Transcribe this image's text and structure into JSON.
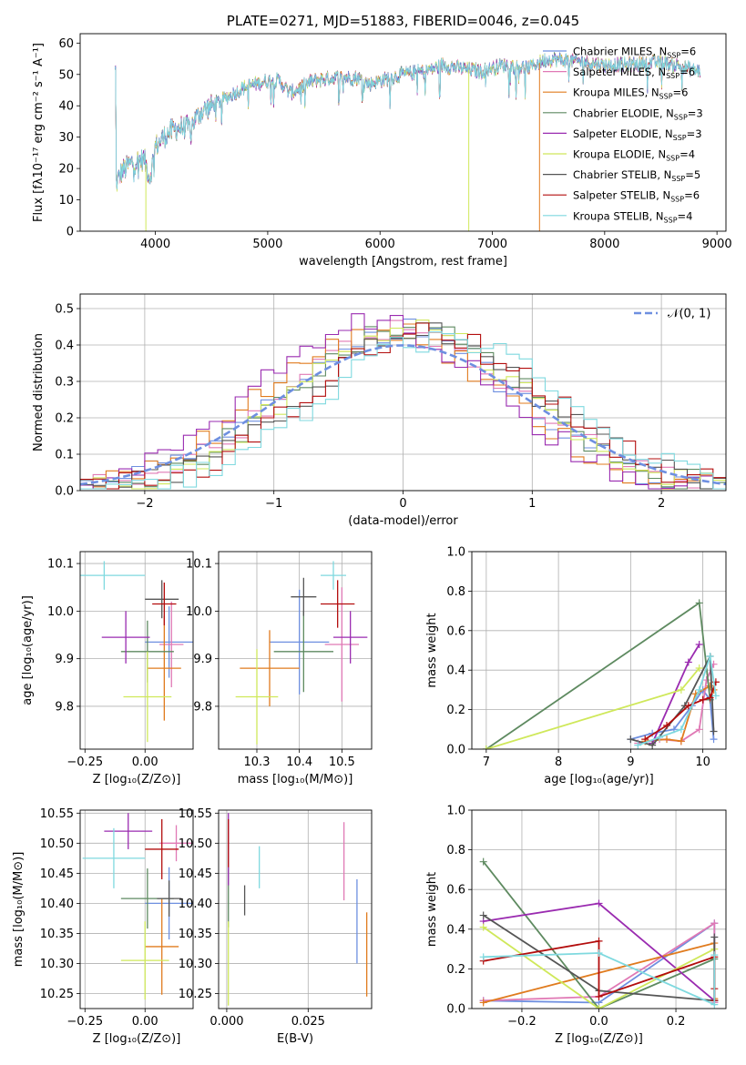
{
  "colors": {
    "cm": "#6e8fe0",
    "sm": "#e079b5",
    "km": "#e07b1e",
    "ce": "#5e8a60",
    "se": "#9a2bb0",
    "ke": "#cfe85a",
    "cs": "#555555",
    "ss": "#b30d0d",
    "ks": "#7fd9df",
    "grid": "#b0b0b0",
    "normal": "#6e8fe0"
  },
  "chart_data": [
    {
      "id": "spectrum",
      "type": "line",
      "title": "PLATE=0271, MJD=51883, FIBERID=0046, z=0.045",
      "xlabel": "wavelength [Angstrom, rest frame]",
      "ylabel": "Flux [fλ10⁻¹⁷ erg cm⁻² s⁻¹ A⁻¹]",
      "xlim": [
        3330,
        9080
      ],
      "ylim": [
        0,
        63
      ],
      "xticks": [
        4000,
        5000,
        6000,
        7000,
        8000,
        9000
      ],
      "yticks": [
        0,
        10,
        20,
        30,
        40,
        50,
        60
      ],
      "grid": false,
      "legend_position": "upper-right",
      "legend": [
        {
          "key": "cm",
          "label": "Chabrier MILES, N",
          "sub": "SSP",
          "tail": "=6"
        },
        {
          "key": "sm",
          "label": "Salpeter MILES, N",
          "sub": "SSP",
          "tail": "=6"
        },
        {
          "key": "km",
          "label": "Kroupa MILES, N",
          "sub": "SSP",
          "tail": "=6"
        },
        {
          "key": "ce",
          "label": "Chabrier ELODIE, N",
          "sub": "SSP",
          "tail": "=3"
        },
        {
          "key": "se",
          "label": "Salpeter ELODIE, N",
          "sub": "SSP",
          "tail": "=3"
        },
        {
          "key": "ke",
          "label": "Kroupa ELODIE, N",
          "sub": "SSP",
          "tail": "=4"
        },
        {
          "key": "cs",
          "label": "Chabrier STELIB, N",
          "sub": "SSP",
          "tail": "=5"
        },
        {
          "key": "ss",
          "label": "Salpeter STELIB, N",
          "sub": "SSP",
          "tail": "=6"
        },
        {
          "key": "ks",
          "label": "Kroupa STELIB, N",
          "sub": "SSP",
          "tail": "=4"
        }
      ],
      "continuum": [
        [
          3650,
          15
        ],
        [
          3700,
          19
        ],
        [
          3800,
          22
        ],
        [
          3900,
          23
        ],
        [
          3950,
          17
        ],
        [
          4000,
          27
        ],
        [
          4100,
          31
        ],
        [
          4200,
          33
        ],
        [
          4300,
          33
        ],
        [
          4400,
          38
        ],
        [
          4600,
          42
        ],
        [
          4800,
          46
        ],
        [
          5000,
          48
        ],
        [
          5100,
          48
        ],
        [
          5200,
          44
        ],
        [
          5400,
          48
        ],
        [
          5600,
          49
        ],
        [
          5800,
          49
        ],
        [
          5900,
          47
        ],
        [
          6000,
          48
        ],
        [
          6200,
          50
        ],
        [
          6400,
          51
        ],
        [
          6560,
          53
        ],
        [
          6700,
          52
        ],
        [
          6900,
          51
        ],
        [
          7100,
          53
        ],
        [
          7300,
          52
        ],
        [
          7500,
          55
        ],
        [
          7800,
          54
        ],
        [
          8000,
          53
        ],
        [
          8200,
          53
        ],
        [
          8500,
          54
        ],
        [
          8850,
          51
        ]
      ],
      "spikes": [
        {
          "x": 3915,
          "key": "ke"
        },
        {
          "x": 6790,
          "key": "ke"
        },
        {
          "x": 7420,
          "key": "km"
        }
      ]
    },
    {
      "id": "residuals",
      "type": "step-histogram",
      "xlabel": "(data-model)/error",
      "ylabel": "Normed distribution",
      "xlim": [
        -2.5,
        2.5
      ],
      "ylim": [
        0,
        0.54
      ],
      "xticks": [
        -2,
        -1,
        0,
        1,
        2
      ],
      "yticks": [
        0.0,
        0.1,
        0.2,
        0.3,
        0.4,
        0.5
      ],
      "grid": true,
      "legend_position": "upper-right",
      "legend_label": "𝒩(0, 1)",
      "series_keys": [
        "cm",
        "sm",
        "km",
        "ce",
        "se",
        "ke",
        "cs",
        "ss",
        "ks"
      ]
    },
    {
      "id": "age_Z",
      "type": "errorbar",
      "xlabel": "Z [log₁₀(Z/Z⊙)]",
      "ylabel": "age  [log₁₀(age/yr)]",
      "xlim": [
        -0.27,
        0.2
      ],
      "ylim": [
        9.71,
        10.125
      ],
      "xticks": [
        -0.25,
        0.0
      ],
      "xticklabels": [
        "−0.25",
        "0.00"
      ],
      "yticks": [
        9.8,
        9.9,
        10.0,
        10.1
      ],
      "grid": true,
      "points": [
        {
          "key": "cm",
          "x": 0.1,
          "xe": 0.1,
          "y": 9.935,
          "ye": 0.075
        },
        {
          "key": "sm",
          "x": 0.11,
          "xe": 0.05,
          "y": 9.93,
          "ye": 0.09
        },
        {
          "key": "km",
          "x": 0.08,
          "xe": 0.07,
          "y": 9.88,
          "ye": 0.11
        },
        {
          "key": "ce",
          "x": 0.01,
          "xe": 0.11,
          "y": 9.915,
          "ye": 0.065
        },
        {
          "key": "se",
          "x": -0.08,
          "xe": 0.1,
          "y": 9.945,
          "ye": 0.055
        },
        {
          "key": "ke",
          "x": 0.01,
          "xe": 0.1,
          "y": 9.82,
          "ye": 0.095
        },
        {
          "key": "cs",
          "x": 0.07,
          "xe": 0.07,
          "y": 10.025,
          "ye": 0.04
        },
        {
          "key": "ss",
          "x": 0.08,
          "xe": 0.05,
          "y": 10.015,
          "ye": 0.045
        },
        {
          "key": "ks",
          "x": -0.17,
          "xe": 0.17,
          "y": 10.075,
          "ye": 0.03
        }
      ]
    },
    {
      "id": "age_mass",
      "type": "errorbar",
      "xlabel": "mass [log₁₀(M/M⊙)]",
      "xlim": [
        10.21,
        10.57
      ],
      "ylim": [
        9.71,
        10.125
      ],
      "xticks": [
        10.3,
        10.4,
        10.5
      ],
      "xticklabels": [
        "10.3",
        "10.4",
        "10.5"
      ],
      "yticks": [
        9.8,
        9.9,
        10.0,
        10.1
      ],
      "grid": true,
      "points": [
        {
          "key": "cm",
          "x": 10.4,
          "xe": 0.07,
          "y": 9.935,
          "ye": 0.11
        },
        {
          "key": "sm",
          "x": 10.5,
          "xe": 0.04,
          "y": 9.93,
          "ye": 0.12
        },
        {
          "key": "km",
          "x": 10.33,
          "xe": 0.07,
          "y": 9.88,
          "ye": 0.08
        },
        {
          "key": "ce",
          "x": 10.41,
          "xe": 0.07,
          "y": 9.915,
          "ye": 0.085
        },
        {
          "key": "se",
          "x": 10.52,
          "xe": 0.04,
          "y": 9.945,
          "ye": 0.055
        },
        {
          "key": "ke",
          "x": 10.3,
          "xe": 0.05,
          "y": 9.82,
          "ye": 0.1
        },
        {
          "key": "cs",
          "x": 10.41,
          "xe": 0.03,
          "y": 10.03,
          "ye": 0.04
        },
        {
          "key": "ss",
          "x": 10.49,
          "xe": 0.04,
          "y": 10.015,
          "ye": 0.05
        },
        {
          "key": "ks",
          "x": 10.48,
          "xe": 0.03,
          "y": 10.075,
          "ye": 0.03
        }
      ]
    },
    {
      "id": "weight_age",
      "type": "line",
      "xlabel": "age  [log₁₀(age/yr)]",
      "ylabel": "mass weight",
      "xlim": [
        6.8,
        10.32
      ],
      "ylim": [
        0,
        1
      ],
      "xticks": [
        7,
        8,
        9,
        10
      ],
      "yticks": [
        0.0,
        0.2,
        0.4,
        0.6,
        0.8,
        1.0
      ],
      "grid": true,
      "series": [
        {
          "key": "cm",
          "points": [
            [
              9.0,
              0.05
            ],
            [
              9.3,
              0.08
            ],
            [
              9.6,
              0.1
            ],
            [
              9.85,
              0.22
            ],
            [
              10.0,
              0.3
            ],
            [
              10.1,
              0.25
            ],
            [
              10.15,
              0.05
            ]
          ]
        },
        {
          "key": "sm",
          "points": [
            [
              9.1,
              0.03
            ],
            [
              9.4,
              0.05
            ],
            [
              9.7,
              0.04
            ],
            [
              9.95,
              0.1
            ],
            [
              10.05,
              0.35
            ],
            [
              10.15,
              0.43
            ]
          ]
        },
        {
          "key": "km",
          "points": [
            [
              9.2,
              0.04
            ],
            [
              9.5,
              0.05
            ],
            [
              9.7,
              0.04
            ],
            [
              9.9,
              0.28
            ],
            [
              10.1,
              0.32
            ],
            [
              10.15,
              0.3
            ]
          ]
        },
        {
          "key": "ce",
          "points": [
            [
              7.0,
              0.0
            ],
            [
              9.95,
              0.74
            ],
            [
              10.1,
              0.25
            ]
          ]
        },
        {
          "key": "se",
          "points": [
            [
              9.3,
              0.03
            ],
            [
              9.8,
              0.44
            ],
            [
              9.95,
              0.53
            ]
          ]
        },
        {
          "key": "ke",
          "points": [
            [
              7.0,
              0.0
            ],
            [
              9.7,
              0.3
            ],
            [
              9.95,
              0.41
            ]
          ]
        },
        {
          "key": "cs",
          "points": [
            [
              9.0,
              0.05
            ],
            [
              9.3,
              0.02
            ],
            [
              9.75,
              0.22
            ],
            [
              10.1,
              0.47
            ],
            [
              10.15,
              0.09
            ]
          ]
        },
        {
          "key": "ss",
          "points": [
            [
              9.2,
              0.05
            ],
            [
              9.5,
              0.12
            ],
            [
              9.8,
              0.22
            ],
            [
              10.0,
              0.25
            ],
            [
              10.1,
              0.26
            ],
            [
              10.18,
              0.34
            ]
          ]
        },
        {
          "key": "ks",
          "points": [
            [
              9.1,
              0.02
            ],
            [
              9.4,
              0.06
            ],
            [
              9.7,
              0.1
            ],
            [
              9.95,
              0.3
            ],
            [
              10.1,
              0.47
            ],
            [
              10.18,
              0.27
            ]
          ]
        }
      ]
    },
    {
      "id": "mass_Z",
      "type": "errorbar",
      "xlabel": "Z [log₁₀(Z/Z⊙)]",
      "ylabel": "mass [log₁₀(M/M⊙)]",
      "xlim": [
        -0.27,
        0.2
      ],
      "ylim": [
        10.225,
        10.555
      ],
      "xticks": [
        -0.25,
        0.0
      ],
      "xticklabels": [
        "−0.25",
        "0.00"
      ],
      "yticks": [
        10.25,
        10.3,
        10.35,
        10.4,
        10.45,
        10.5,
        10.55
      ],
      "grid": true,
      "points": [
        {
          "key": "cm",
          "x": 0.1,
          "xe": 0.1,
          "y": 10.4,
          "ye": 0.06
        },
        {
          "key": "sm",
          "x": 0.13,
          "xe": 0.07,
          "y": 10.5,
          "ye": 0.03
        },
        {
          "key": "km",
          "x": 0.07,
          "xe": 0.07,
          "y": 10.328,
          "ye": 0.08
        },
        {
          "key": "ce",
          "x": 0.01,
          "xe": 0.11,
          "y": 10.408,
          "ye": 0.05
        },
        {
          "key": "se",
          "x": -0.07,
          "xe": 0.1,
          "y": 10.52,
          "ye": 0.03
        },
        {
          "key": "ke",
          "x": 0.0,
          "xe": 0.1,
          "y": 10.305,
          "ye": 0.065
        },
        {
          "key": "cs",
          "x": 0.1,
          "xe": 0.05,
          "y": 10.408,
          "ye": 0.03
        },
        {
          "key": "ss",
          "x": 0.07,
          "xe": 0.07,
          "y": 10.49,
          "ye": 0.05
        },
        {
          "key": "ks",
          "x": -0.13,
          "xe": 0.13,
          "y": 10.475,
          "ye": 0.05
        }
      ]
    },
    {
      "id": "mass_ebv",
      "type": "errorbar",
      "xlabel": "E(B-V)",
      "xlim": [
        -0.0025,
        0.0445
      ],
      "ylim": [
        10.225,
        10.555
      ],
      "xticks": [
        0.0,
        0.025
      ],
      "xticklabels": [
        "0.000",
        "0.025"
      ],
      "yticks": [
        10.25,
        10.3,
        10.35,
        10.4,
        10.45,
        10.5,
        10.55
      ],
      "grid": true,
      "points": [
        {
          "key": "cm",
          "x": 0.04,
          "xe": 0,
          "y": 10.37,
          "ye": 0.07
        },
        {
          "key": "sm",
          "x": 0.036,
          "xe": 0,
          "y": 10.47,
          "ye": 0.065
        },
        {
          "key": "km",
          "x": 0.043,
          "xe": 0,
          "y": 10.315,
          "ye": 0.07
        },
        {
          "key": "ce",
          "x": 0.0005,
          "xe": 0,
          "y": 10.41,
          "ye": 0.05
        },
        {
          "key": "se",
          "x": 0.0005,
          "xe": 0,
          "y": 10.49,
          "ye": 0.06
        },
        {
          "key": "ke",
          "x": 0.0005,
          "xe": 0,
          "y": 10.3,
          "ye": 0.07
        },
        {
          "key": "cs",
          "x": 0.0055,
          "xe": 0,
          "y": 10.405,
          "ye": 0.025
        },
        {
          "key": "ss",
          "x": 0.0005,
          "xe": 0,
          "y": 10.5,
          "ye": 0.04
        },
        {
          "key": "ks",
          "x": 0.01,
          "xe": 0,
          "y": 10.46,
          "ye": 0.035
        }
      ]
    },
    {
      "id": "weight_Z",
      "type": "line",
      "xlabel": "Z [log₁₀(Z/Z⊙)]",
      "ylabel": "mass weight",
      "xlim": [
        -0.33,
        0.33
      ],
      "ylim": [
        0,
        1
      ],
      "xticks": [
        -0.2,
        0.0,
        0.2
      ],
      "xticklabels": [
        "−0.2",
        "0.0",
        "0.2"
      ],
      "yticks": [
        0.0,
        0.2,
        0.4,
        0.6,
        0.8,
        1.0
      ],
      "grid": true,
      "series": [
        {
          "key": "cm",
          "points": [
            [
              -0.3,
              0.04
            ],
            [
              0.0,
              0.03
            ],
            [
              0.3,
              0.43
            ],
            [
              0.3,
              0.03
            ]
          ]
        },
        {
          "key": "sm",
          "points": [
            [
              -0.3,
              0.04
            ],
            [
              0.0,
              0.06
            ],
            [
              0.3,
              0.43
            ],
            [
              0.3,
              0.03
            ]
          ]
        },
        {
          "key": "km",
          "points": [
            [
              -0.3,
              0.03
            ],
            [
              0.3,
              0.33
            ],
            [
              0.3,
              0.05
            ]
          ]
        },
        {
          "key": "ce",
          "points": [
            [
              -0.3,
              0.74
            ],
            [
              0.0,
              0.0
            ],
            [
              0.3,
              0.25
            ]
          ]
        },
        {
          "key": "se",
          "points": [
            [
              -0.3,
              0.44
            ],
            [
              0.0,
              0.53
            ],
            [
              0.3,
              0.04
            ]
          ]
        },
        {
          "key": "ke",
          "points": [
            [
              -0.3,
              0.41
            ],
            [
              0.0,
              0.0
            ],
            [
              0.3,
              0.3
            ]
          ]
        },
        {
          "key": "cs",
          "points": [
            [
              -0.3,
              0.47
            ],
            [
              0.0,
              0.09
            ],
            [
              0.3,
              0.04
            ],
            [
              0.3,
              0.36
            ]
          ]
        },
        {
          "key": "ss",
          "points": [
            [
              -0.3,
              0.24
            ],
            [
              0.0,
              0.34
            ],
            [
              0.0,
              0.06
            ],
            [
              0.3,
              0.26
            ],
            [
              0.3,
              0.1
            ],
            [
              0.3,
              0.04
            ]
          ]
        },
        {
          "key": "ks",
          "points": [
            [
              -0.3,
              0.26
            ],
            [
              0.0,
              0.28
            ],
            [
              0.3,
              0.02
            ],
            [
              0.3,
              0.27
            ]
          ]
        }
      ]
    }
  ]
}
